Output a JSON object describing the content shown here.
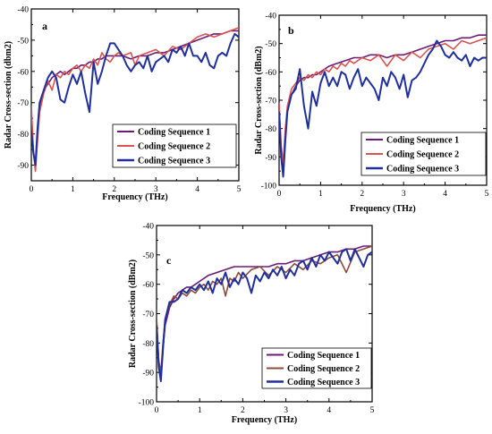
{
  "chart_data": [
    {
      "type": "line",
      "panel_label": "a",
      "xlabel": "Frequency (THz)",
      "ylabel": "Radar Cross-section (dbm2)",
      "xlim": [
        0,
        5
      ],
      "ylim": [
        -95,
        -40
      ],
      "xticks": [
        0,
        1,
        2,
        3,
        4,
        5
      ],
      "yticks": [
        -90,
        -80,
        -70,
        -60,
        -50,
        -40
      ],
      "grid": false,
      "legend_position": "bottom-right",
      "series": [
        {
          "name": "Coding Sequence 1",
          "color": "#6a1b78",
          "stroke": 1.6,
          "x": [
            0,
            0.05,
            0.1,
            0.15,
            0.2,
            0.3,
            0.4,
            0.5,
            0.6,
            0.7,
            0.8,
            0.9,
            1.0,
            1.1,
            1.2,
            1.3,
            1.4,
            1.5,
            1.6,
            1.7,
            1.8,
            1.9,
            2.0,
            2.2,
            2.4,
            2.6,
            2.8,
            3.0,
            3.2,
            3.4,
            3.6,
            3.8,
            4.0,
            4.2,
            4.4,
            4.6,
            4.8,
            5.0
          ],
          "y": [
            -73,
            -86,
            -90,
            -80,
            -72,
            -66,
            -64,
            -62,
            -61,
            -60,
            -61,
            -60,
            -59,
            -59,
            -58,
            -58,
            -57,
            -57,
            -56,
            -56,
            -55,
            -55,
            -55,
            -55,
            -56,
            -55,
            -55,
            -54,
            -54,
            -53,
            -52,
            -51,
            -50,
            -49,
            -48,
            -48,
            -47,
            -47
          ]
        },
        {
          "name": "Coding Sequence 2",
          "color": "#d9534f",
          "stroke": 1.6,
          "x": [
            0,
            0.05,
            0.1,
            0.15,
            0.2,
            0.3,
            0.4,
            0.5,
            0.6,
            0.7,
            0.8,
            0.9,
            1.0,
            1.1,
            1.2,
            1.3,
            1.4,
            1.5,
            1.6,
            1.7,
            1.8,
            1.9,
            2.0,
            2.1,
            2.2,
            2.4,
            2.5,
            2.6,
            2.8,
            3.0,
            3.2,
            3.4,
            3.6,
            3.8,
            4.0,
            4.2,
            4.4,
            4.6,
            4.8,
            5.0
          ],
          "y": [
            -71,
            -85,
            -92,
            -82,
            -73,
            -67,
            -63,
            -66,
            -61,
            -62,
            -60,
            -61,
            -59,
            -58,
            -60,
            -58,
            -59,
            -56,
            -58,
            -54,
            -56,
            -57,
            -55,
            -54,
            -55,
            -54,
            -58,
            -55,
            -54,
            -53,
            -55,
            -52,
            -53,
            -51,
            -49,
            -48,
            -49,
            -48,
            -47,
            -46
          ]
        },
        {
          "name": "Coding Sequence 3",
          "color": "#1f2f9c",
          "stroke": 2.0,
          "x": [
            0,
            0.05,
            0.1,
            0.15,
            0.2,
            0.3,
            0.4,
            0.5,
            0.6,
            0.7,
            0.8,
            0.9,
            1.0,
            1.1,
            1.2,
            1.3,
            1.4,
            1.5,
            1.6,
            1.7,
            1.8,
            1.9,
            2.0,
            2.1,
            2.2,
            2.3,
            2.4,
            2.5,
            2.6,
            2.7,
            2.8,
            2.9,
            3.0,
            3.1,
            3.2,
            3.3,
            3.4,
            3.5,
            3.6,
            3.7,
            3.8,
            3.9,
            4.0,
            4.1,
            4.2,
            4.3,
            4.4,
            4.5,
            4.6,
            4.7,
            4.8,
            4.9,
            5.0
          ],
          "y": [
            -79,
            -86,
            -90,
            -78,
            -70,
            -66,
            -62,
            -60,
            -62,
            -69,
            -70,
            -65,
            -61,
            -64,
            -60,
            -67,
            -73,
            -57,
            -64,
            -60,
            -55,
            -51,
            -51,
            -53,
            -55,
            -58,
            -60,
            -58,
            -57,
            -59,
            -55,
            -60,
            -57,
            -56,
            -55,
            -57,
            -53,
            -54,
            -52,
            -55,
            -51,
            -55,
            -55,
            -57,
            -54,
            -58,
            -59,
            -55,
            -54,
            -55,
            -51,
            -48,
            -49
          ]
        }
      ]
    },
    {
      "type": "line",
      "panel_label": "b",
      "xlabel": "Frequency (THz)",
      "ylabel": "Radar Cross-section (dBm2)",
      "xlim": [
        0,
        5
      ],
      "ylim": [
        -100,
        -40
      ],
      "xticks": [
        0,
        1,
        2,
        3,
        4,
        5
      ],
      "yticks": [
        -100,
        -90,
        -80,
        -70,
        -60,
        -50,
        -40
      ],
      "grid": false,
      "legend_position": "bottom-right",
      "series": [
        {
          "name": "Coding Sequence 1",
          "color": "#6a1b78",
          "stroke": 1.6,
          "x": [
            0,
            0.05,
            0.1,
            0.15,
            0.2,
            0.3,
            0.4,
            0.5,
            0.6,
            0.7,
            0.8,
            0.9,
            1.0,
            1.2,
            1.4,
            1.6,
            1.8,
            2.0,
            2.2,
            2.4,
            2.6,
            2.8,
            3.0,
            3.2,
            3.4,
            3.6,
            3.8,
            4.0,
            4.2,
            4.4,
            4.6,
            4.8,
            5.0
          ],
          "y": [
            -72,
            -88,
            -94,
            -82,
            -74,
            -68,
            -65,
            -63,
            -62,
            -62,
            -61,
            -61,
            -60,
            -58,
            -57,
            -56,
            -55,
            -55,
            -54,
            -54,
            -55,
            -54,
            -54,
            -53,
            -52,
            -51,
            -50,
            -49,
            -49,
            -48,
            -48,
            -47,
            -47
          ]
        },
        {
          "name": "Coding Sequence 2",
          "color": "#d9534f",
          "stroke": 1.6,
          "x": [
            0,
            0.05,
            0.1,
            0.15,
            0.2,
            0.3,
            0.4,
            0.5,
            0.6,
            0.7,
            0.8,
            0.9,
            1.0,
            1.1,
            1.2,
            1.3,
            1.4,
            1.5,
            1.6,
            1.7,
            1.8,
            2.0,
            2.2,
            2.4,
            2.6,
            2.8,
            3.0,
            3.2,
            3.4,
            3.6,
            3.8,
            4.0,
            4.2,
            4.4,
            4.6,
            4.8,
            5.0
          ],
          "y": [
            -71,
            -86,
            -92,
            -80,
            -72,
            -66,
            -64,
            -62,
            -63,
            -61,
            -62,
            -60,
            -61,
            -59,
            -60,
            -58,
            -59,
            -57,
            -58,
            -56,
            -57,
            -55,
            -56,
            -54,
            -58,
            -54,
            -56,
            -53,
            -55,
            -52,
            -51,
            -50,
            -52,
            -49,
            -50,
            -49,
            -48
          ]
        },
        {
          "name": "Coding Sequence 3",
          "color": "#1f2f9c",
          "stroke": 2.0,
          "x": [
            0,
            0.05,
            0.1,
            0.15,
            0.2,
            0.3,
            0.4,
            0.5,
            0.6,
            0.7,
            0.8,
            0.9,
            1.0,
            1.1,
            1.2,
            1.3,
            1.4,
            1.5,
            1.6,
            1.7,
            1.8,
            1.9,
            2.0,
            2.1,
            2.2,
            2.3,
            2.4,
            2.5,
            2.6,
            2.7,
            2.8,
            2.9,
            3.0,
            3.1,
            3.2,
            3.3,
            3.4,
            3.5,
            3.6,
            3.7,
            3.8,
            3.9,
            4.0,
            4.1,
            4.2,
            4.3,
            4.4,
            4.5,
            4.6,
            4.7,
            4.8,
            4.9,
            5.0
          ],
          "y": [
            -74,
            -90,
            -97,
            -84,
            -74,
            -68,
            -66,
            -59,
            -72,
            -80,
            -67,
            -72,
            -64,
            -60,
            -65,
            -62,
            -65,
            -60,
            -61,
            -66,
            -62,
            -59,
            -65,
            -62,
            -64,
            -66,
            -70,
            -62,
            -65,
            -60,
            -62,
            -66,
            -61,
            -69,
            -63,
            -62,
            -60,
            -57,
            -54,
            -52,
            -49,
            -51,
            -54,
            -55,
            -53,
            -55,
            -56,
            -54,
            -58,
            -55,
            -56,
            -55,
            -55
          ]
        }
      ]
    },
    {
      "type": "line",
      "panel_label": "c",
      "xlabel": "Frequency (THz)",
      "ylabel": "Radar Cross-section (dBm2)",
      "xlim": [
        0,
        5
      ],
      "ylim": [
        -100,
        -40
      ],
      "xticks": [
        0,
        1,
        2,
        3,
        4,
        5
      ],
      "yticks": [
        -100,
        -90,
        -80,
        -70,
        -60,
        -50,
        -40
      ],
      "grid": false,
      "legend_position": "bottom-right",
      "series": [
        {
          "name": "Coding Sequence 1",
          "color": "#6a1b78",
          "stroke": 1.6,
          "x": [
            0,
            0.05,
            0.1,
            0.15,
            0.2,
            0.3,
            0.4,
            0.5,
            0.6,
            0.7,
            0.8,
            0.9,
            1.0,
            1.2,
            1.4,
            1.6,
            1.8,
            2.0,
            2.2,
            2.4,
            2.6,
            2.8,
            3.0,
            3.2,
            3.4,
            3.6,
            3.8,
            4.0,
            4.2,
            4.4,
            4.6,
            4.8,
            5.0
          ],
          "y": [
            -72,
            -86,
            -92,
            -82,
            -74,
            -68,
            -65,
            -63,
            -62,
            -61,
            -61,
            -60,
            -59,
            -57,
            -56,
            -55,
            -54,
            -54,
            -54,
            -54,
            -54,
            -53,
            -53,
            -52,
            -52,
            -51,
            -50,
            -49,
            -49,
            -48,
            -48,
            -47,
            -47
          ]
        },
        {
          "name": "Coding Sequence 2",
          "color": "#8b4c3a",
          "stroke": 1.6,
          "x": [
            0,
            0.05,
            0.1,
            0.15,
            0.2,
            0.3,
            0.4,
            0.5,
            0.6,
            0.7,
            0.8,
            0.9,
            1.0,
            1.1,
            1.2,
            1.3,
            1.4,
            1.5,
            1.6,
            1.7,
            1.8,
            1.9,
            2.0,
            2.2,
            2.4,
            2.6,
            2.8,
            3.0,
            3.2,
            3.4,
            3.6,
            3.8,
            4.0,
            4.2,
            4.4,
            4.6,
            4.8,
            5.0
          ],
          "y": [
            -71,
            -86,
            -90,
            -80,
            -72,
            -67,
            -64,
            -65,
            -63,
            -64,
            -62,
            -63,
            -61,
            -60,
            -62,
            -59,
            -60,
            -58,
            -64,
            -58,
            -59,
            -56,
            -58,
            -55,
            -54,
            -57,
            -54,
            -56,
            -53,
            -55,
            -52,
            -53,
            -51,
            -50,
            -56,
            -49,
            -48,
            -47
          ]
        },
        {
          "name": "Coding Sequence 3",
          "color": "#1f2f9c",
          "stroke": 2.0,
          "x": [
            0,
            0.05,
            0.1,
            0.15,
            0.2,
            0.3,
            0.4,
            0.5,
            0.6,
            0.7,
            0.8,
            0.9,
            1.0,
            1.1,
            1.2,
            1.3,
            1.4,
            1.5,
            1.6,
            1.7,
            1.8,
            1.9,
            2.0,
            2.1,
            2.2,
            2.3,
            2.4,
            2.5,
            2.6,
            2.7,
            2.8,
            2.9,
            3.0,
            3.1,
            3.2,
            3.3,
            3.4,
            3.5,
            3.6,
            3.7,
            3.8,
            3.9,
            4.0,
            4.1,
            4.2,
            4.3,
            4.4,
            4.5,
            4.6,
            4.7,
            4.8,
            4.9,
            5.0
          ],
          "y": [
            -74,
            -88,
            -93,
            -82,
            -72,
            -66,
            -66,
            -65,
            -62,
            -63,
            -61,
            -62,
            -60,
            -62,
            -59,
            -63,
            -58,
            -60,
            -56,
            -61,
            -58,
            -60,
            -56,
            -58,
            -63,
            -57,
            -59,
            -56,
            -58,
            -55,
            -57,
            -54,
            -58,
            -55,
            -57,
            -53,
            -52,
            -55,
            -51,
            -54,
            -50,
            -52,
            -49,
            -51,
            -53,
            -49,
            -48,
            -52,
            -48,
            -51,
            -54,
            -50,
            -49
          ]
        }
      ]
    }
  ]
}
